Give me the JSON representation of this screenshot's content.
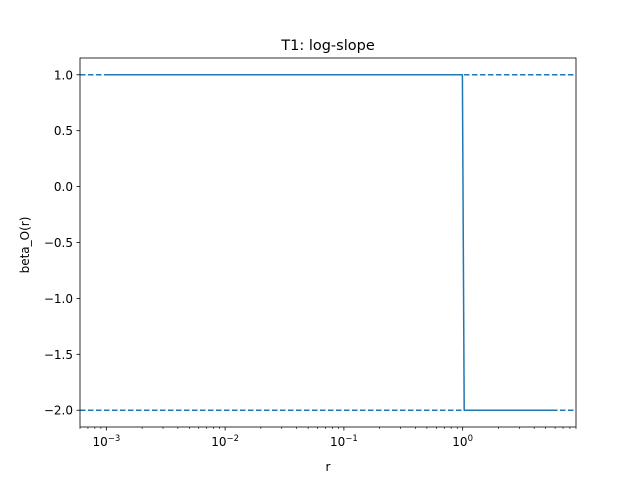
{
  "chart_data": {
    "type": "line",
    "title": "T1: log-slope",
    "xlabel": "r",
    "ylabel": "beta_O(r)",
    "xscale": "log",
    "xlim": [
      0.0006,
      9.0
    ],
    "ylim": [
      -2.15,
      1.15
    ],
    "grid": false,
    "xticks": [
      {
        "value": 0.001,
        "base": "10",
        "exp": "−3"
      },
      {
        "value": 0.01,
        "base": "10",
        "exp": "−2"
      },
      {
        "value": 0.1,
        "base": "10",
        "exp": "−1"
      },
      {
        "value": 1,
        "base": "10",
        "exp": "0"
      }
    ],
    "yticks": [
      {
        "value": 1.0,
        "label": "1.0"
      },
      {
        "value": 0.5,
        "label": "0.5"
      },
      {
        "value": 0.0,
        "label": "0.0"
      },
      {
        "value": -0.5,
        "label": "−0.5"
      },
      {
        "value": -1.0,
        "label": "−1.0"
      },
      {
        "value": -1.5,
        "label": "−1.5"
      },
      {
        "value": -2.0,
        "label": "−2.0"
      }
    ],
    "series": [
      {
        "color": "#1f77b4",
        "x": [
          0.001,
          0.01,
          0.1,
          0.97,
          0.995,
          1.03,
          2.0,
          6.0
        ],
        "y": [
          1.0,
          1.0,
          1.0,
          1.0,
          1.0,
          -2.0,
          -2.0,
          -2.0
        ]
      }
    ],
    "reference_lines": [
      {
        "y": 1.0,
        "style": "dashed",
        "color": "#1f77b4"
      },
      {
        "y": -2.0,
        "style": "dashed",
        "color": "#1f77b4"
      }
    ]
  }
}
